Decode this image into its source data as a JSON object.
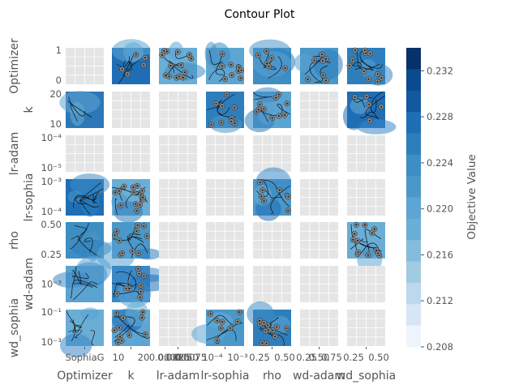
{
  "chart_data": {
    "type": "contour",
    "title": "Contour Plot",
    "params": [
      "Optimizer",
      "k",
      "lr-adam",
      "lr-sophia",
      "rho",
      "wd-adam",
      "wd_sophia"
    ],
    "x_labels": [
      "Optimizer",
      "k",
      "lr-adam",
      "lr-sophia",
      "rho",
      "wd-adam",
      "wd_sophia"
    ],
    "y_labels": [
      "Optimizer",
      "k",
      "lr-adam",
      "lr-sophia",
      "rho",
      "wd-adam",
      "wd_sophia"
    ],
    "x_tick_labels": {
      "Optimizer": [
        "SophiaG"
      ],
      "k": [
        "10",
        "20"
      ],
      "lr-adam": [
        "0.0000",
        "0.0025",
        "0.0050",
        "0.0075"
      ],
      "lr-sophia": [
        "10⁻⁴",
        "10⁻³"
      ],
      "rho": [
        "0.25",
        "0.50"
      ],
      "wd-adam": [
        "0.25",
        "0.50",
        "0.75"
      ],
      "wd_sophia": [
        "0.25",
        "0.50"
      ]
    },
    "y_tick_labels": {
      "Optimizer": [
        "1",
        "0"
      ],
      "k": [
        "20",
        "10"
      ],
      "lr-adam": [
        "10⁻⁴",
        "10⁻⁵"
      ],
      "lr-sophia": [
        "10⁻³",
        "10⁻⁴"
      ],
      "rho": [
        "0.50",
        "0.25"
      ],
      "wd-adam": [
        "10⁻³"
      ],
      "wd_sophia": [
        "10⁻¹",
        "10⁻³"
      ]
    },
    "colorbar": {
      "label": "Objective Value",
      "min": 0.208,
      "max": 0.234,
      "ticks": [
        "0.232",
        "0.228",
        "0.224",
        "0.220",
        "0.216",
        "0.212",
        "0.208"
      ],
      "colormap": "Blues",
      "levels": 14
    },
    "empty_cell_color": "#e5e5e5",
    "point_color": "#888888"
  }
}
